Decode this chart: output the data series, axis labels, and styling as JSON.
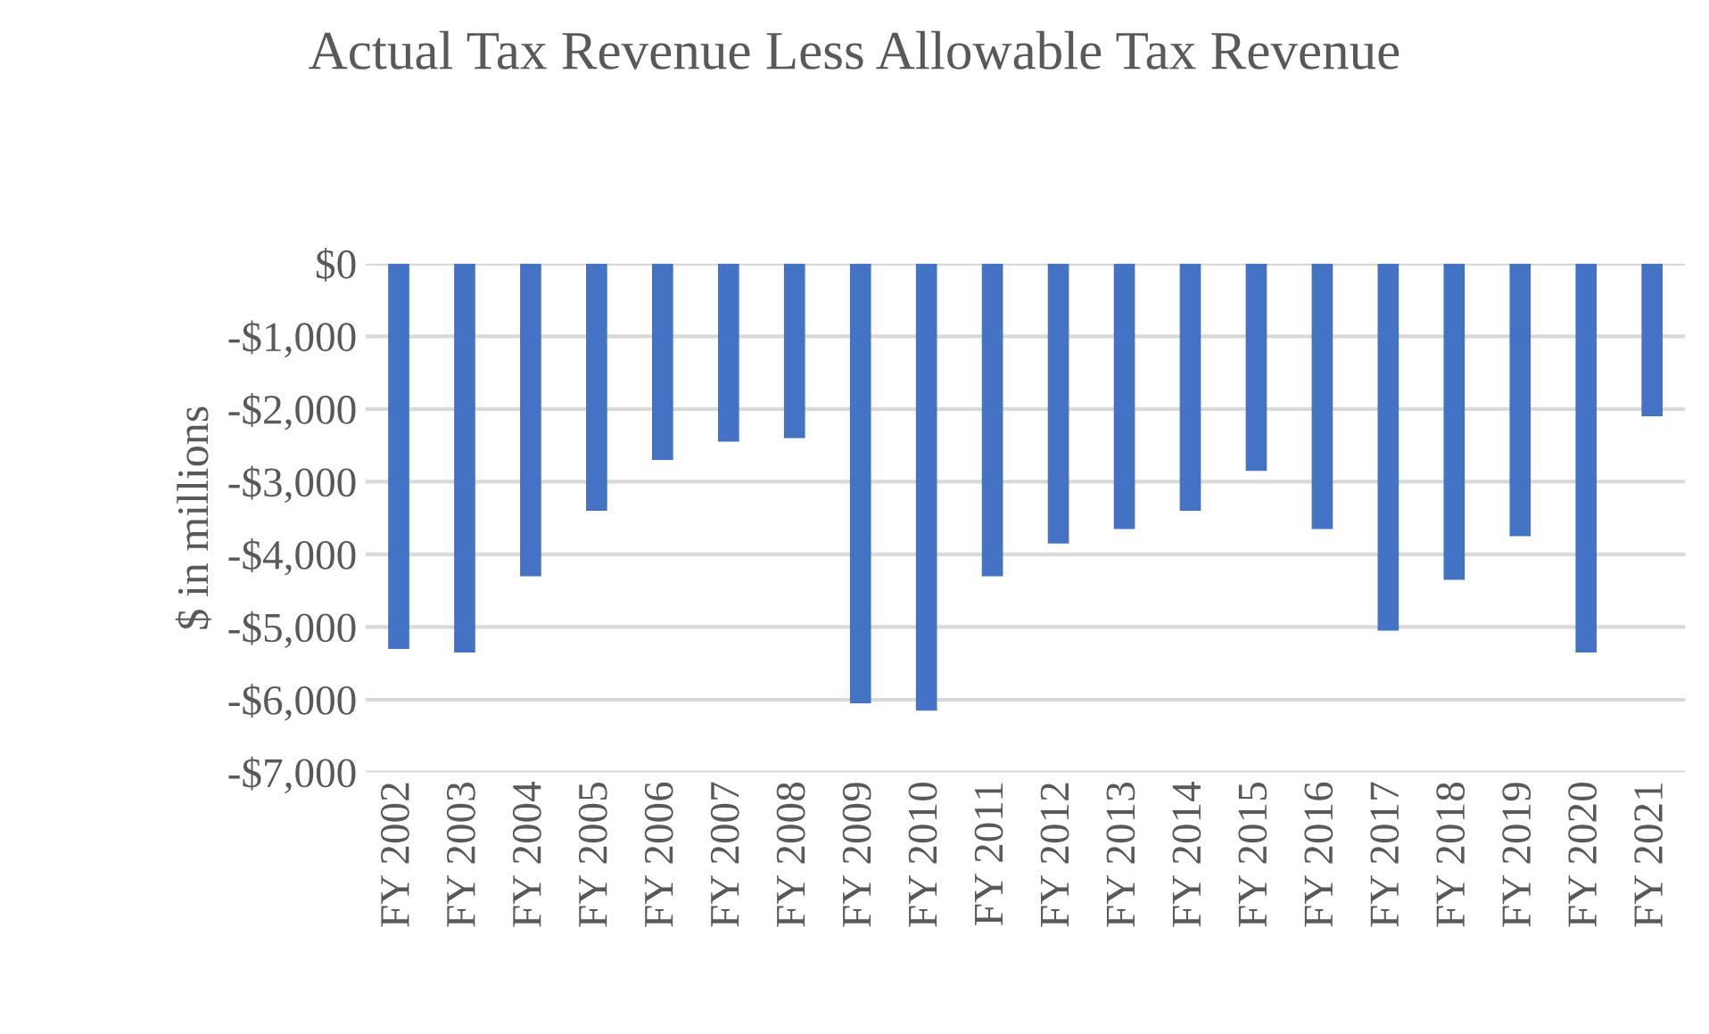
{
  "chart_data": {
    "type": "bar",
    "title": "Actual Tax Revenue Less Allowable Tax Revenue",
    "ylabel": "$ in millions",
    "categories": [
      "FY 2002",
      "FY 2003",
      "FY 2004",
      "FY 2005",
      "FY 2006",
      "FY 2007",
      "FY 2008",
      "FY 2009",
      "FY 2010",
      "FY 2011",
      "FY 2012",
      "FY 2013",
      "FY 2014",
      "FY 2015",
      "FY 2016",
      "FY 2017",
      "FY 2018",
      "FY 2019",
      "FY 2020",
      "FY 2021"
    ],
    "values": [
      -5300,
      -5350,
      -4300,
      -3400,
      -2700,
      -2450,
      -2400,
      -6050,
      -6150,
      -4300,
      -3850,
      -3650,
      -3400,
      -2850,
      -3650,
      -5050,
      -4350,
      -3750,
      -5350,
      -2100
    ],
    "color": "#4472c4",
    "ylim": [
      -7000,
      0
    ],
    "yticks": [
      {
        "value": 0,
        "label": "$0"
      },
      {
        "value": -1000,
        "label": "-$1,000"
      },
      {
        "value": -2000,
        "label": "-$2,000"
      },
      {
        "value": -3000,
        "label": "-$3,000"
      },
      {
        "value": -4000,
        "label": "-$4,000"
      },
      {
        "value": -5000,
        "label": "-$5,000"
      },
      {
        "value": -6000,
        "label": "-$6,000"
      },
      {
        "value": -7000,
        "label": "-$7,000"
      }
    ],
    "grid": "y"
  }
}
